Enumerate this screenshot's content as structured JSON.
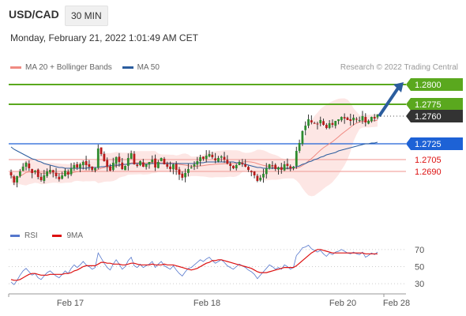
{
  "header": {
    "pair": "USD/CAD",
    "timeframe": "30 MIN",
    "date": "Monday, February 21, 2022 1:01:49 AM CET"
  },
  "legend": {
    "ma20_label": "MA 20 + Bollinger Bands",
    "ma20_color": "#f08a82",
    "ma50_label": "MA 50",
    "ma50_color": "#2b5d9e",
    "credit": "Research © 2022 Trading Central"
  },
  "rsi_legend": {
    "rsi_label": "RSI",
    "rsi_color": "#5577cc",
    "ma_label": "9MA",
    "ma_color": "#dd1111"
  },
  "chart_data": [
    {
      "type": "candlestick",
      "title": "USD/CAD 30 MIN",
      "ylim": [
        1.2615,
        1.2812
      ],
      "x_ticks": [
        "Feb 17",
        "Feb 18",
        "Feb 20",
        "Feb 28"
      ],
      "price_levels": [
        {
          "value": 1.28,
          "label": "1.2800",
          "color": "#5aa81e",
          "style": "tag"
        },
        {
          "value": 1.2775,
          "label": "1.2775",
          "color": "#5aa81e",
          "style": "tag"
        },
        {
          "value": 1.276,
          "label": "1.2760",
          "color": "#333333",
          "style": "tag"
        },
        {
          "value": 1.2725,
          "label": "1.2725",
          "color": "#1d62d6",
          "style": "tag"
        },
        {
          "value": 1.2705,
          "label": "1.2705",
          "color": "#dd1111",
          "style": "text"
        },
        {
          "value": 1.269,
          "label": "1.2690",
          "color": "#dd1111",
          "style": "text"
        }
      ],
      "close": [
        1.2685,
        1.2676,
        1.2684,
        1.269,
        1.2696,
        1.2701,
        1.2694,
        1.2688,
        1.2691,
        1.2683,
        1.2679,
        1.2685,
        1.269,
        1.2692,
        1.2689,
        1.2684,
        1.268,
        1.2685,
        1.2691,
        1.2686,
        1.2694,
        1.2698,
        1.2695,
        1.2699,
        1.2702,
        1.2698,
        1.2696,
        1.2692,
        1.2694,
        1.2719,
        1.2712,
        1.2703,
        1.2696,
        1.2691,
        1.2701,
        1.2708,
        1.2702,
        1.2693,
        1.2697,
        1.2707,
        1.2713,
        1.2699,
        1.2697,
        1.2703,
        1.2696,
        1.2699,
        1.2702,
        1.2705,
        1.2695,
        1.2702,
        1.2707,
        1.2699,
        1.2696,
        1.2693,
        1.2699,
        1.2692,
        1.2686,
        1.2682,
        1.2688,
        1.2693,
        1.2695,
        1.2699,
        1.2703,
        1.2708,
        1.2706,
        1.271,
        1.2712,
        1.2708,
        1.2704,
        1.2707,
        1.2709,
        1.2705,
        1.27,
        1.2697,
        1.2694,
        1.2698,
        1.2702,
        1.2699,
        1.2696,
        1.2692,
        1.2689,
        1.2685,
        1.2678,
        1.2682,
        1.2687,
        1.2694,
        1.2699,
        1.2697,
        1.2693,
        1.2695,
        1.2692,
        1.2699,
        1.2697,
        1.2694,
        1.2696,
        1.2716,
        1.2726,
        1.2741,
        1.2748,
        1.2756,
        1.2752,
        1.2751,
        1.275,
        1.2755,
        1.2749,
        1.2745,
        1.2751,
        1.2749,
        1.2754,
        1.2756,
        1.2759,
        1.2757,
        1.2755,
        1.2754,
        1.2758,
        1.2756,
        1.2755,
        1.276,
        1.2752,
        1.2754,
        1.2759,
        1.2757,
        1.2762
      ],
      "ma50": [
        1.2721,
        1.2718,
        1.2716,
        1.2714,
        1.2712,
        1.271,
        1.2708,
        1.2706,
        1.2705,
        1.2703,
        1.2702,
        1.27,
        1.2699,
        1.2698,
        1.2697,
        1.2696,
        1.2695,
        1.2695,
        1.2694,
        1.2694,
        1.2694,
        1.2694,
        1.2694,
        1.2694,
        1.2694,
        1.2694,
        1.2695,
        1.2695,
        1.2695,
        1.2695,
        1.2696,
        1.2696,
        1.2697,
        1.2697,
        1.2698,
        1.2698,
        1.2698,
        1.2699,
        1.2699,
        1.2699,
        1.27,
        1.27,
        1.27,
        1.27,
        1.27,
        1.2699,
        1.27,
        1.27,
        1.27,
        1.27,
        1.27,
        1.27,
        1.27,
        1.27,
        1.27,
        1.27,
        1.27,
        1.27,
        1.27,
        1.27,
        1.27,
        1.27,
        1.2701,
        1.2701,
        1.2701,
        1.2702,
        1.2702,
        1.2702,
        1.2702,
        1.2702,
        1.2702,
        1.2702,
        1.2702,
        1.2702,
        1.2702,
        1.2701,
        1.2701,
        1.27,
        1.2699,
        1.2698,
        1.2697,
        1.2696,
        1.2695,
        1.2695,
        1.2694,
        1.2694,
        1.2694,
        1.2694,
        1.2694,
        1.2694,
        1.2694,
        1.2694,
        1.2694,
        1.2694,
        1.2695,
        1.2696,
        1.2697,
        1.2699,
        1.27,
        1.2702,
        1.2703,
        1.2705,
        1.2706,
        1.2708,
        1.2709,
        1.2711,
        1.2712,
        1.2713,
        1.2714,
        1.2716,
        1.2717,
        1.2718,
        1.2719,
        1.272,
        1.2721,
        1.2722,
        1.2723,
        1.2724,
        1.2725,
        1.2725,
        1.2726,
        1.2726,
        1.2727
      ]
    },
    {
      "type": "line",
      "title": "RSI",
      "ylim": [
        20,
        80
      ],
      "y_ticks": [
        70,
        50,
        30
      ],
      "series": [
        {
          "name": "RSI",
          "values": [
            32,
            29,
            34,
            40,
            45,
            48,
            44,
            40,
            42,
            37,
            35,
            39,
            43,
            45,
            42,
            39,
            37,
            41,
            45,
            42,
            48,
            52,
            49,
            52,
            56,
            52,
            50,
            47,
            49,
            66,
            60,
            54,
            49,
            46,
            53,
            58,
            53,
            47,
            50,
            57,
            61,
            51,
            49,
            53,
            49,
            51,
            53,
            56,
            49,
            53,
            56,
            51,
            49,
            47,
            51,
            46,
            42,
            39,
            44,
            48,
            49,
            52,
            55,
            58,
            56,
            59,
            61,
            57,
            54,
            56,
            58,
            55,
            51,
            49,
            47,
            50,
            53,
            51,
            49,
            46,
            44,
            41,
            36,
            40,
            44,
            48,
            52,
            50,
            47,
            49,
            47,
            52,
            50,
            47,
            49,
            63,
            67,
            72,
            73,
            75,
            71,
            69,
            67,
            69,
            65,
            62,
            66,
            64,
            67,
            68,
            70,
            68,
            66,
            65,
            67,
            65,
            64,
            67,
            61,
            63,
            66,
            64,
            67
          ]
        },
        {
          "name": "9MA",
          "values": [
            35,
            34,
            34,
            35,
            37,
            39,
            41,
            42,
            42,
            41,
            40,
            40,
            40,
            41,
            41,
            41,
            41,
            41,
            42,
            42,
            43,
            45,
            46,
            48,
            50,
            51,
            51,
            51,
            51,
            53,
            55,
            55,
            54,
            54,
            53,
            53,
            53,
            52,
            52,
            53,
            54,
            54,
            53,
            52,
            52,
            52,
            52,
            53,
            52,
            52,
            52,
            53,
            52,
            52,
            52,
            51,
            50,
            49,
            48,
            47,
            46,
            47,
            48,
            50,
            52,
            54,
            55,
            57,
            57,
            58,
            58,
            57,
            56,
            55,
            54,
            53,
            52,
            51,
            50,
            49,
            48,
            46,
            44,
            43,
            43,
            43,
            44,
            45,
            46,
            47,
            48,
            49,
            49,
            49,
            49,
            51,
            54,
            57,
            60,
            63,
            66,
            68,
            70,
            70,
            69,
            68,
            67,
            66,
            66,
            66,
            66,
            66,
            66,
            66,
            66,
            66,
            66,
            66,
            65,
            65,
            65,
            65,
            65
          ]
        }
      ]
    }
  ]
}
